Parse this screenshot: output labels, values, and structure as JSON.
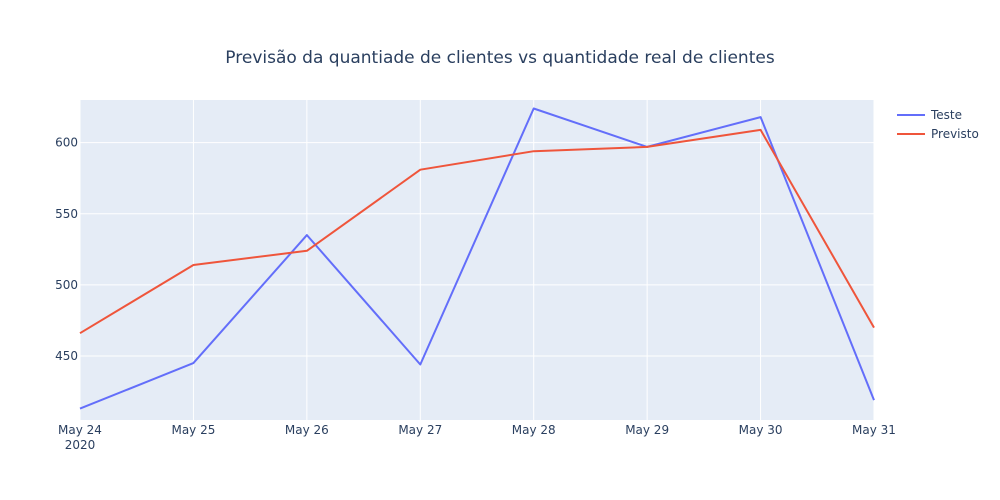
{
  "chart_data": {
    "type": "line",
    "title": "Previsão da quantiade de clientes vs quantidade real de clientes",
    "xlabel": "",
    "ylabel": "",
    "x": [
      "2020-05-24",
      "2020-05-25",
      "2020-05-26",
      "2020-05-27",
      "2020-05-28",
      "2020-05-29",
      "2020-05-30",
      "2020-05-31"
    ],
    "x_tick_labels": [
      "May 24",
      "May 25",
      "May 26",
      "May 27",
      "May 28",
      "May 29",
      "May 30",
      "May 31"
    ],
    "x_tick_year": "2020",
    "y_ticks": [
      450,
      500,
      550,
      600
    ],
    "ylim": [
      405,
      630
    ],
    "grid": true,
    "legend_position": "top-right",
    "series": [
      {
        "name": "Teste",
        "color": "#636efa",
        "values": [
          413,
          445,
          535,
          444,
          624,
          597,
          618,
          419
        ]
      },
      {
        "name": "Previsto",
        "color": "#ef553b",
        "values": [
          466,
          514,
          524,
          581,
          594,
          597,
          609,
          470
        ]
      }
    ]
  }
}
